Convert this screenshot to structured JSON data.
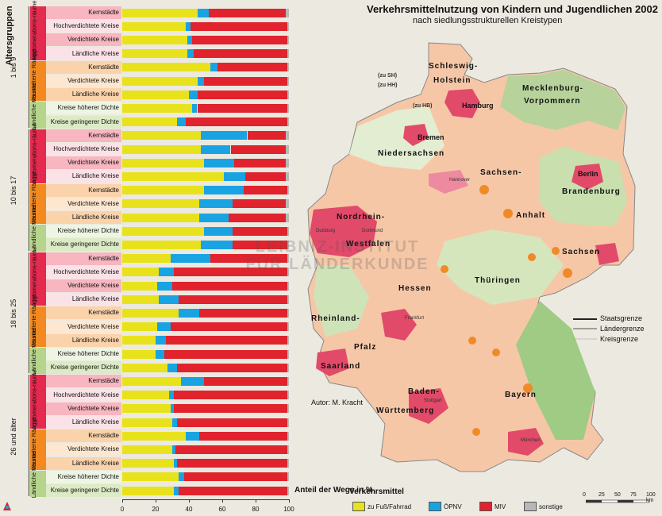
{
  "title": "Verkehrsmittelnutzung von Kindern und Jugendlichen 2002",
  "subtitle": "nach siedlungsstrukturellen Kreistypen",
  "author": "Autor:   M. Kracht",
  "colors": {
    "fuss": "#e8e21c",
    "oepnv": "#1aa3e2",
    "miv": "#e0232d",
    "sonst": "#b8b8b8"
  },
  "chart_data": {
    "type": "bar",
    "stacked": true,
    "y_axis_title": "Altersgruppen",
    "x_axis_title": "Anteil der Wege in %",
    "xlim": [
      0,
      100
    ],
    "x_ticks": [
      "0",
      "20",
      "40",
      "60",
      "80",
      "100"
    ],
    "groups_labels": {
      "agglo": "Agglomerations-räume",
      "verst": "Verstädterte Räume",
      "laendl": "Ländliche Räume"
    },
    "age_groups": [
      {
        "label": "1 bis 9",
        "rows": [
          {
            "region": "agglo",
            "label": "Kernstädte",
            "fuss": 45,
            "oepnv": 7,
            "miv": 46,
            "sonst": 2
          },
          {
            "region": "agglo",
            "label": "Hochverdichtete Kreise",
            "fuss": 38,
            "oepnv": 3,
            "miv": 58,
            "sonst": 1
          },
          {
            "region": "agglo",
            "label": "Verdichtete Kreise",
            "fuss": 39,
            "oepnv": 3,
            "miv": 57,
            "sonst": 1
          },
          {
            "region": "agglo",
            "label": "Ländliche Kreise",
            "fuss": 39,
            "oepnv": 4,
            "miv": 56,
            "sonst": 1
          },
          {
            "region": "verst",
            "label": "Kernstädte",
            "fuss": 53,
            "oepnv": 4,
            "miv": 42,
            "sonst": 1
          },
          {
            "region": "verst",
            "label": "Verdichtete Kreise",
            "fuss": 45,
            "oepnv": 4,
            "miv": 50,
            "sonst": 1
          },
          {
            "region": "verst",
            "label": "Ländliche Kreise",
            "fuss": 40,
            "oepnv": 5,
            "miv": 54,
            "sonst": 1
          },
          {
            "region": "laendl",
            "label": "Kreise höherer Dichte",
            "fuss": 42,
            "oepnv": 3,
            "miv": 54,
            "sonst": 1
          },
          {
            "region": "laendl",
            "label": "Kreise geringerer Dichte",
            "fuss": 33,
            "oepnv": 5,
            "miv": 61,
            "sonst": 1
          }
        ]
      },
      {
        "label": "10 bis 17",
        "rows": [
          {
            "region": "agglo",
            "label": "Kernstädte",
            "fuss": 47,
            "oepnv": 28,
            "miv": 23,
            "sonst": 2
          },
          {
            "region": "agglo",
            "label": "Hochverdichtete Kreise",
            "fuss": 47,
            "oepnv": 18,
            "miv": 33,
            "sonst": 2
          },
          {
            "region": "agglo",
            "label": "Verdichtete Kreise",
            "fuss": 49,
            "oepnv": 18,
            "miv": 31,
            "sonst": 2
          },
          {
            "region": "agglo",
            "label": "Ländliche Kreise",
            "fuss": 61,
            "oepnv": 13,
            "miv": 24,
            "sonst": 2
          },
          {
            "region": "verst",
            "label": "Kernstädte",
            "fuss": 49,
            "oepnv": 24,
            "miv": 26,
            "sonst": 1
          },
          {
            "region": "verst",
            "label": "Verdichtete Kreise",
            "fuss": 46,
            "oepnv": 20,
            "miv": 32,
            "sonst": 2
          },
          {
            "region": "verst",
            "label": "Ländliche Kreise",
            "fuss": 46,
            "oepnv": 18,
            "miv": 34,
            "sonst": 2
          },
          {
            "region": "laendl",
            "label": "Kreise höherer Dichte",
            "fuss": 49,
            "oepnv": 17,
            "miv": 33,
            "sonst": 1
          },
          {
            "region": "laendl",
            "label": "Kreise geringerer Dichte",
            "fuss": 47,
            "oepnv": 19,
            "miv": 33,
            "sonst": 1
          }
        ]
      },
      {
        "label": "18 bis 25",
        "rows": [
          {
            "region": "agglo",
            "label": "Kernstädte",
            "fuss": 29,
            "oepnv": 24,
            "miv": 46,
            "sonst": 1
          },
          {
            "region": "agglo",
            "label": "Hochverdichtete Kreise",
            "fuss": 22,
            "oepnv": 9,
            "miv": 68,
            "sonst": 1
          },
          {
            "region": "agglo",
            "label": "Verdichtete Kreise",
            "fuss": 21,
            "oepnv": 9,
            "miv": 69,
            "sonst": 1
          },
          {
            "region": "agglo",
            "label": "Ländliche Kreise",
            "fuss": 22,
            "oepnv": 12,
            "miv": 65,
            "sonst": 1
          },
          {
            "region": "verst",
            "label": "Kernstädte",
            "fuss": 34,
            "oepnv": 12,
            "miv": 53,
            "sonst": 1
          },
          {
            "region": "verst",
            "label": "Verdichtete Kreise",
            "fuss": 21,
            "oepnv": 8,
            "miv": 70,
            "sonst": 1
          },
          {
            "region": "verst",
            "label": "Ländliche Kreise",
            "fuss": 20,
            "oepnv": 6,
            "miv": 73,
            "sonst": 1
          },
          {
            "region": "laendl",
            "label": "Kreise höherer Dichte",
            "fuss": 20,
            "oepnv": 5,
            "miv": 74,
            "sonst": 1
          },
          {
            "region": "laendl",
            "label": "Kreise geringerer Dichte",
            "fuss": 27,
            "oepnv": 6,
            "miv": 66,
            "sonst": 1
          }
        ]
      },
      {
        "label": "26 und älter",
        "rows": [
          {
            "region": "agglo",
            "label": "Kernstädte",
            "fuss": 35,
            "oepnv": 14,
            "miv": 50,
            "sonst": 1
          },
          {
            "region": "agglo",
            "label": "Hochverdichtete Kreise",
            "fuss": 28,
            "oepnv": 3,
            "miv": 68,
            "sonst": 1
          },
          {
            "region": "agglo",
            "label": "Verdichtete Kreise",
            "fuss": 29,
            "oepnv": 2,
            "miv": 68,
            "sonst": 1
          },
          {
            "region": "agglo",
            "label": "Ländliche Kreise",
            "fuss": 30,
            "oepnv": 3,
            "miv": 66,
            "sonst": 1
          },
          {
            "region": "verst",
            "label": "Kernstädte",
            "fuss": 38,
            "oepnv": 8,
            "miv": 53,
            "sonst": 1
          },
          {
            "region": "verst",
            "label": "Verdichtete Kreise",
            "fuss": 30,
            "oepnv": 2,
            "miv": 67,
            "sonst": 1
          },
          {
            "region": "verst",
            "label": "Ländliche Kreise",
            "fuss": 31,
            "oepnv": 2,
            "miv": 66,
            "sonst": 1
          },
          {
            "region": "laendl",
            "label": "Kreise höherer Dichte",
            "fuss": 34,
            "oepnv": 3,
            "miv": 62,
            "sonst": 1
          },
          {
            "region": "laendl",
            "label": "Kreise geringerer Dichte",
            "fuss": 31,
            "oepnv": 3,
            "miv": 65,
            "sonst": 1
          }
        ]
      }
    ]
  },
  "legend": {
    "title": "Verkehrsmittel",
    "items": [
      {
        "key": "fuss",
        "label": "zu Fuß/Fahrrad"
      },
      {
        "key": "oepnv",
        "label": "ÖPNV"
      },
      {
        "key": "miv",
        "label": "MIV"
      },
      {
        "key": "sonst",
        "label": "sonstige"
      }
    ]
  },
  "map": {
    "states": [
      "Schleswig-",
      "Holstein",
      "Mecklenburg-",
      "Vorpommern",
      "Niedersachsen",
      "Sachsen-",
      "Anhalt",
      "Brandenburg",
      "Nordrhein-",
      "Westfalen",
      "Hessen",
      "Thüringen",
      "Sachsen",
      "Rheinland-",
      "Pfalz",
      "Saarland",
      "Baden-",
      "Württemberg",
      "Bayern"
    ],
    "cities": [
      "Hamburg",
      "Bremen",
      "Berlin"
    ],
    "small_cities": [
      "Hannover",
      "Duisburg",
      "Dortmund",
      "Frankfurt",
      "Stuttgart",
      "München"
    ],
    "notes": [
      "(zu SH)",
      "(zu HH)",
      "(zu HB)"
    ],
    "borders": [
      "Staatsgrenze",
      "Ländergrenze",
      "Kreisgrenze"
    ],
    "scale_labels": [
      "0",
      "25",
      "50",
      "75",
      "100 km"
    ],
    "watermark": [
      "LEIBNIZ-INSTITUT",
      "FÜR LÄNDERKUNDE"
    ]
  }
}
